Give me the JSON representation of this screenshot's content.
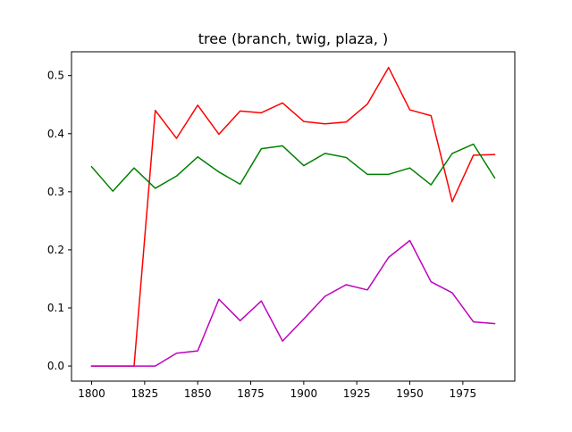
{
  "chart_data": {
    "type": "line",
    "title": "tree (branch, twig, plaza, )",
    "xlabel": "",
    "ylabel": "",
    "xlim": [
      1790.5,
      1999.5
    ],
    "ylim": [
      -0.026,
      0.541
    ],
    "xticks": [
      1800,
      1825,
      1850,
      1875,
      1900,
      1925,
      1950,
      1975
    ],
    "yticks": [
      0.0,
      0.1,
      0.2,
      0.3,
      0.4,
      0.5
    ],
    "ytick_labels": [
      "0.0",
      "0.1",
      "0.2",
      "0.3",
      "0.4",
      "0.5"
    ],
    "grid": false,
    "x": [
      1800,
      1810,
      1820,
      1830,
      1840,
      1850,
      1860,
      1870,
      1880,
      1890,
      1900,
      1910,
      1920,
      1930,
      1940,
      1950,
      1960,
      1970,
      1980,
      1990
    ],
    "series": [
      {
        "color": "#ff0000",
        "values": [
          0.0,
          0.0,
          0.0,
          0.44,
          0.392,
          0.449,
          0.399,
          0.439,
          0.436,
          0.453,
          0.421,
          0.417,
          0.42,
          0.451,
          0.514,
          0.441,
          0.431,
          0.283,
          0.363,
          0.364
        ]
      },
      {
        "color": "#008000",
        "values": [
          0.343,
          0.301,
          0.341,
          0.306,
          0.327,
          0.36,
          0.334,
          0.313,
          0.374,
          0.379,
          0.345,
          0.366,
          0.359,
          0.33,
          0.33,
          0.341,
          0.312,
          0.366,
          0.382,
          0.324
        ]
      },
      {
        "color": "#bf00bf",
        "values": [
          0.0,
          0.0,
          0.0,
          0.0,
          0.022,
          0.026,
          0.115,
          0.078,
          0.112,
          0.043,
          0.081,
          0.12,
          0.14,
          0.131,
          0.187,
          0.216,
          0.145,
          0.126,
          0.076,
          0.073
        ]
      }
    ]
  }
}
